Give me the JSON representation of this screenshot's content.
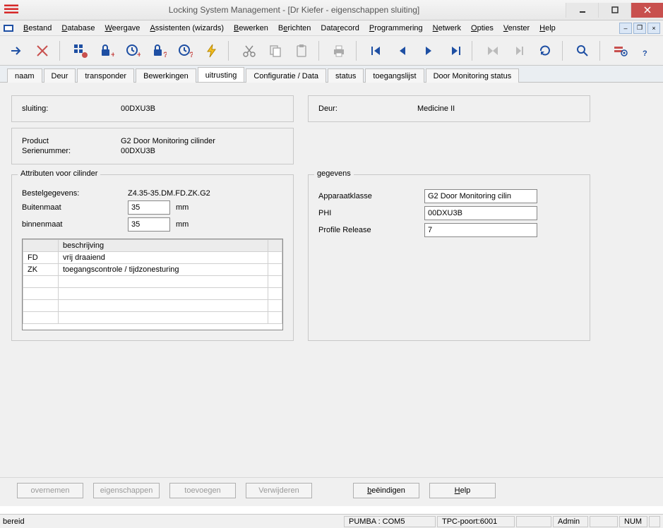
{
  "window": {
    "title": "Locking System Management - [Dr Kiefer - eigenschappen sluiting]"
  },
  "menu": {
    "bestand": "Bestand",
    "database": "Database",
    "weergave": "Weergave",
    "assistenten": "Assistenten (wizards)",
    "bewerken": "Bewerken",
    "berichten": "Berichten",
    "datarecord": "Datarecord",
    "programmering": "Programmering",
    "netwerk": "Netwerk",
    "opties": "Opties",
    "venster": "Venster",
    "help": "Help"
  },
  "tabs": {
    "naam": "naam",
    "deur": "Deur",
    "transponder": "transponder",
    "bewerkingen": "Bewerkingen",
    "uitrusting": "uitrusting",
    "configuratie": "Configuratie / Data",
    "status": "status",
    "toegangslijst": "toegangslijst",
    "door_monitoring": "Door Monitoring status"
  },
  "header": {
    "sluiting_label": "sluiting:",
    "sluiting_value": "00DXU3B",
    "deur_label": "Deur:",
    "deur_value": "Medicine II"
  },
  "product_panel": {
    "product_label": "Product",
    "product_value": "G2 Door Monitoring cilinder",
    "serienummer_label": "Serienummer:",
    "serienummer_value": "00DXU3B"
  },
  "attr": {
    "legend": "Attributen voor cilinder",
    "bestel_label": "Bestelgegevens:",
    "bestel_value": "Z4.35-35.DM.FD.ZK.G2",
    "buiten_label": "Buitenmaat",
    "buiten_value": "35",
    "binnen_label": "binnenmaat",
    "binnen_value": "35",
    "unit": "mm",
    "col_beschrijving": "beschrijving",
    "rows": [
      {
        "code": "FD",
        "desc": "vrij draaiend"
      },
      {
        "code": "ZK",
        "desc": "toegangscontrole / tijdzonesturing"
      }
    ]
  },
  "gegevens": {
    "legend": "gegevens",
    "apparaatklasse_label": "Apparaatklasse",
    "apparaatklasse_value": "G2 Door Monitoring cilin",
    "phi_label": "PHI",
    "phi_value": "00DXU3B",
    "profile_label": "Profile Release",
    "profile_value": "7"
  },
  "buttons": {
    "overnemen": "overnemen",
    "eigenschappen": "eigenschappen",
    "toevoegen": "toevoegen",
    "verwijderen": "Verwijderen",
    "beeindigen": "beëindigen",
    "help": "Help"
  },
  "status": {
    "ready": "bereid",
    "com": "PUMBA : COM5",
    "tpc": "TPC-poort:6001",
    "admin": "Admin",
    "num": "NUM"
  },
  "colors": {
    "close_btn": "#c8504e",
    "accent_blue": "#1e4fa3",
    "danger_red": "#c8504e",
    "bolt_yellow": "#f5c022"
  }
}
